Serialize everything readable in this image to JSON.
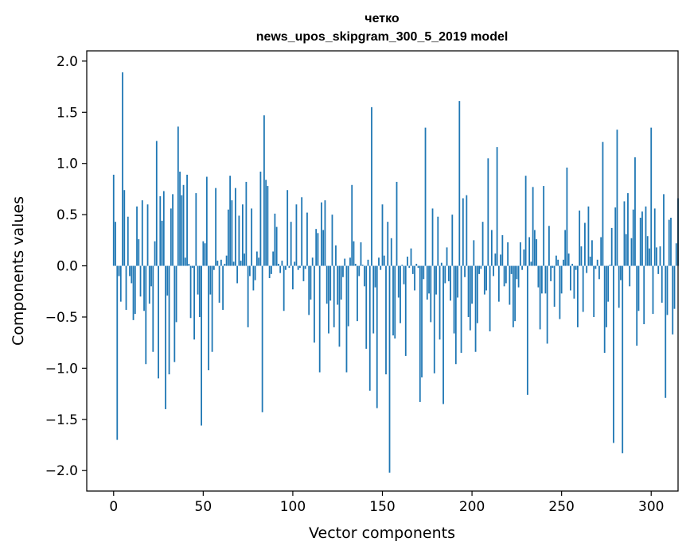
{
  "chart_data": {
    "type": "bar",
    "title_line1": "четко",
    "title_line2": "news_upos_skipgram_300_5_2019 model",
    "xlabel": "Vector components",
    "ylabel": "Components values",
    "xlim": [
      -15,
      315
    ],
    "ylim": [
      -2.2,
      2.1
    ],
    "xticks": [
      0,
      50,
      100,
      150,
      200,
      250,
      300
    ],
    "xtick_labels": [
      "0",
      "50",
      "100",
      "150",
      "200",
      "250",
      "300"
    ],
    "yticks": [
      2.0,
      1.5,
      1.0,
      0.5,
      0.0,
      -0.5,
      -1.0,
      -1.5,
      -2.0
    ],
    "ytick_labels": [
      "2.0",
      "1.5",
      "1.0",
      "0.5",
      "0.0",
      "−0.5",
      "−1.0",
      "−1.5",
      "−2.0"
    ],
    "bar_color": "#1f77b4",
    "values": [
      0.89,
      0.43,
      -1.7,
      -0.1,
      -0.35,
      1.89,
      0.74,
      -0.43,
      0.48,
      -0.1,
      -0.17,
      -0.53,
      -0.47,
      0.58,
      0.26,
      -0.3,
      0.64,
      -0.44,
      -0.96,
      0.6,
      -0.37,
      -0.2,
      -0.84,
      0.24,
      1.22,
      -1.1,
      0.68,
      0.44,
      0.73,
      -1.4,
      -0.29,
      -1.06,
      0.56,
      0.7,
      -0.94,
      -0.55,
      1.36,
      0.92,
      0.69,
      0.79,
      0.08,
      0.89,
      0.02,
      -0.51,
      -0.02,
      -0.72,
      0.71,
      -0.28,
      -0.5,
      -1.56,
      0.24,
      0.22,
      0.87,
      -1.02,
      -0.28,
      -0.84,
      -0.04,
      0.76,
      0.05,
      -0.36,
      0.06,
      -0.43,
      0.02,
      0.1,
      0.55,
      0.88,
      0.64,
      0.04,
      0.76,
      -0.17,
      0.49,
      0.05,
      0.6,
      0.12,
      0.82,
      -0.6,
      -0.1,
      0.56,
      -0.24,
      -0.14,
      0.14,
      0.08,
      0.92,
      -1.43,
      1.47,
      0.84,
      0.78,
      -0.12,
      -0.08,
      0.14,
      0.51,
      0.38,
      0.02,
      -0.07,
      0.05,
      -0.44,
      -0.04,
      0.74,
      -0.02,
      0.43,
      -0.23,
      0.04,
      0.6,
      -0.04,
      -0.02,
      0.67,
      -0.15,
      -0.03,
      0.52,
      -0.48,
      -0.33,
      0.08,
      -0.75,
      0.36,
      0.32,
      -1.04,
      0.62,
      0.35,
      0.64,
      -0.37,
      -0.66,
      -0.34,
      0.5,
      -0.6,
      0.2,
      -0.38,
      -0.79,
      -0.33,
      -0.11,
      0.07,
      -1.04,
      -0.59,
      0.08,
      0.79,
      0.24,
      0.02,
      -0.54,
      -0.1,
      0.23,
      0.01,
      -0.2,
      -0.81,
      0.06,
      -1.22,
      1.55,
      -0.66,
      -0.21,
      -1.39,
      0.08,
      -0.04,
      0.6,
      0.1,
      -1.06,
      0.43,
      -2.02,
      0.27,
      -0.68,
      -0.71,
      0.82,
      -0.31,
      -0.56,
      0.01,
      -0.18,
      -0.88,
      0.09,
      -0.02,
      0.17,
      -0.08,
      -0.24,
      0.02,
      -0.02,
      -1.33,
      -1.09,
      -0.13,
      1.35,
      -0.33,
      -0.27,
      -0.55,
      0.56,
      -1.05,
      -0.28,
      0.48,
      -0.72,
      0.03,
      -1.35,
      -0.17,
      0.18,
      -0.15,
      -0.34,
      0.5,
      -0.66,
      -0.96,
      -0.31,
      1.61,
      -0.85,
      0.66,
      -0.11,
      0.69,
      -0.5,
      -0.63,
      -0.37,
      0.25,
      -0.84,
      -0.56,
      -0.08,
      -0.03,
      0.43,
      -0.28,
      -0.24,
      1.05,
      -0.64,
      0.35,
      -0.1,
      0.12,
      1.16,
      -0.35,
      0.11,
      0.3,
      -0.2,
      -0.17,
      0.23,
      -0.38,
      -0.08,
      -0.6,
      -0.54,
      -0.13,
      -0.21,
      0.23,
      -0.04,
      0.16,
      0.88,
      -1.26,
      0.28,
      0.04,
      0.77,
      0.35,
      0.26,
      -0.21,
      -0.62,
      -0.27,
      0.78,
      -0.27,
      -0.76,
      0.39,
      -0.15,
      -0.02,
      -0.4,
      0.1,
      0.06,
      -0.52,
      -0.27,
      0.06,
      0.35,
      0.96,
      0.12,
      -0.24,
      0.02,
      -0.32,
      -0.04,
      -0.6,
      0.54,
      0.19,
      -0.45,
      0.42,
      -0.07,
      0.58,
      0.09,
      0.25,
      -0.5,
      -0.03,
      0.06,
      -0.13,
      0.28,
      1.21,
      -0.85,
      -0.6,
      -0.35,
      0.01,
      0.37,
      -1.73,
      0.57,
      1.33,
      -0.41,
      -0.14,
      -1.83,
      0.63,
      0.31,
      0.71,
      -0.2,
      0.27,
      0.55,
      1.06,
      -0.78,
      -0.44,
      0.47,
      0.53,
      -0.57,
      0.58,
      0.29,
      0.17,
      1.35,
      -0.47,
      0.56,
      0.18,
      -0.08,
      0.19,
      -0.36,
      0.7,
      -1.29,
      -0.48,
      0.45,
      0.47,
      -0.67,
      -0.42,
      0.22,
      0.66
    ]
  }
}
